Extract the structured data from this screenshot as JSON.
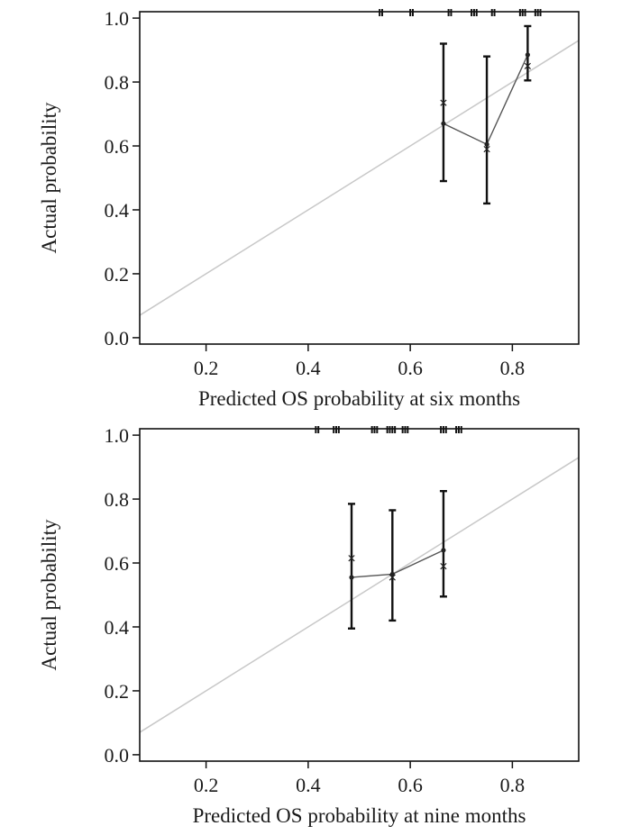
{
  "colors": {
    "frame": "#111111",
    "ideal_line": "#c8c8c8",
    "calib_line": "#555555",
    "point": "#222222"
  },
  "chart_data": [
    {
      "type": "scatter",
      "title": "",
      "xlabel": "Predicted OS probability at six months",
      "ylabel": "Actual probability",
      "xlim": [
        0.07,
        0.93
      ],
      "ylim": [
        -0.02,
        1.02
      ],
      "xticks": [
        0.2,
        0.4,
        0.6,
        0.8
      ],
      "xtick_labels": [
        "0.2",
        "0.4",
        "0.6",
        "0.8"
      ],
      "yticks": [
        0.0,
        0.2,
        0.4,
        0.6,
        0.8,
        1.0
      ],
      "ytick_labels": [
        "0.0",
        "0.2",
        "0.4",
        "0.6",
        "0.8",
        "1.0"
      ],
      "ideal_line": {
        "from": [
          0.07,
          0.07
        ],
        "to": [
          0.93,
          0.93
        ]
      },
      "points": [
        {
          "x": 0.665,
          "observed": 0.67,
          "lower": 0.49,
          "upper": 0.92,
          "corrected": 0.735
        },
        {
          "x": 0.75,
          "observed": 0.605,
          "lower": 0.42,
          "upper": 0.88,
          "corrected": 0.59
        },
        {
          "x": 0.83,
          "observed": 0.885,
          "lower": 0.805,
          "upper": 0.975,
          "corrected": 0.85
        }
      ],
      "rug": [
        0.54,
        0.545,
        0.6,
        0.605,
        0.675,
        0.68,
        0.72,
        0.725,
        0.73,
        0.76,
        0.765,
        0.815,
        0.82,
        0.825,
        0.845,
        0.85,
        0.855
      ]
    },
    {
      "type": "scatter",
      "title": "",
      "xlabel": "Predicted OS probability at nine months",
      "ylabel": "Actual probability",
      "xlim": [
        0.07,
        0.93
      ],
      "ylim": [
        -0.02,
        1.02
      ],
      "xticks": [
        0.2,
        0.4,
        0.6,
        0.8
      ],
      "xtick_labels": [
        "0.2",
        "0.4",
        "0.6",
        "0.8"
      ],
      "yticks": [
        0.0,
        0.2,
        0.4,
        0.6,
        0.8,
        1.0
      ],
      "ytick_labels": [
        "0.0",
        "0.2",
        "0.4",
        "0.6",
        "0.8",
        "1.0"
      ],
      "ideal_line": {
        "from": [
          0.07,
          0.07
        ],
        "to": [
          0.93,
          0.93
        ]
      },
      "points": [
        {
          "x": 0.485,
          "observed": 0.555,
          "lower": 0.395,
          "upper": 0.785,
          "corrected": 0.615
        },
        {
          "x": 0.565,
          "observed": 0.565,
          "lower": 0.42,
          "upper": 0.765,
          "corrected": 0.555
        },
        {
          "x": 0.665,
          "observed": 0.64,
          "lower": 0.495,
          "upper": 0.825,
          "corrected": 0.59
        }
      ],
      "rug": [
        0.415,
        0.42,
        0.45,
        0.455,
        0.46,
        0.525,
        0.53,
        0.535,
        0.555,
        0.56,
        0.565,
        0.57,
        0.585,
        0.59,
        0.595,
        0.66,
        0.665,
        0.67,
        0.69,
        0.695,
        0.7
      ]
    }
  ]
}
